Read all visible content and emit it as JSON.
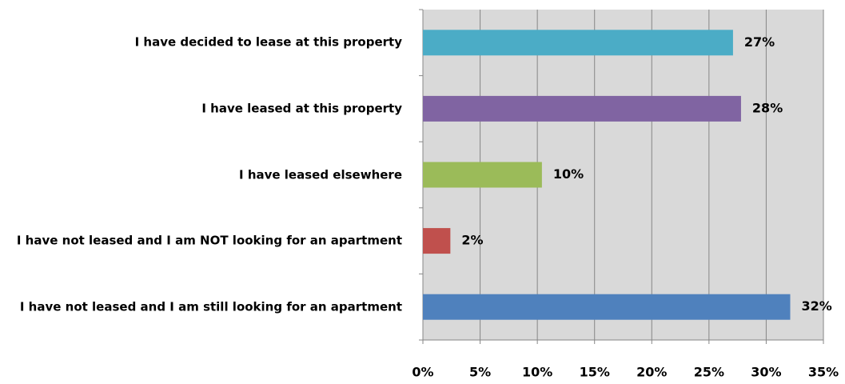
{
  "chart_data": {
    "type": "bar",
    "orientation": "horizontal",
    "categories": [
      "I have decided to lease at this property",
      "I have leased at this property",
      "I have leased elsewhere",
      "I have not leased and I am NOT looking for an apartment",
      "I have not leased and I am still looking for an apartment"
    ],
    "values": [
      27.1,
      27.8,
      10.4,
      2.4,
      32.1
    ],
    "value_labels": [
      "27%",
      "28%",
      "10%",
      "2%",
      "32%"
    ],
    "colors": [
      "#4bacc6",
      "#8064a2",
      "#9bbb59",
      "#c0504d",
      "#4f81bd"
    ],
    "xlim": [
      0,
      35
    ],
    "xticks": [
      {
        "value": 0,
        "label": "0%"
      },
      {
        "value": 5,
        "label": "5%"
      },
      {
        "value": 10,
        "label": "10%"
      },
      {
        "value": 15,
        "label": "15%"
      },
      {
        "value": 20,
        "label": "20%"
      },
      {
        "value": 25,
        "label": "25%"
      },
      {
        "value": 30,
        "label": "30%"
      },
      {
        "value": 35,
        "label": "35%"
      }
    ],
    "grid": true
  }
}
